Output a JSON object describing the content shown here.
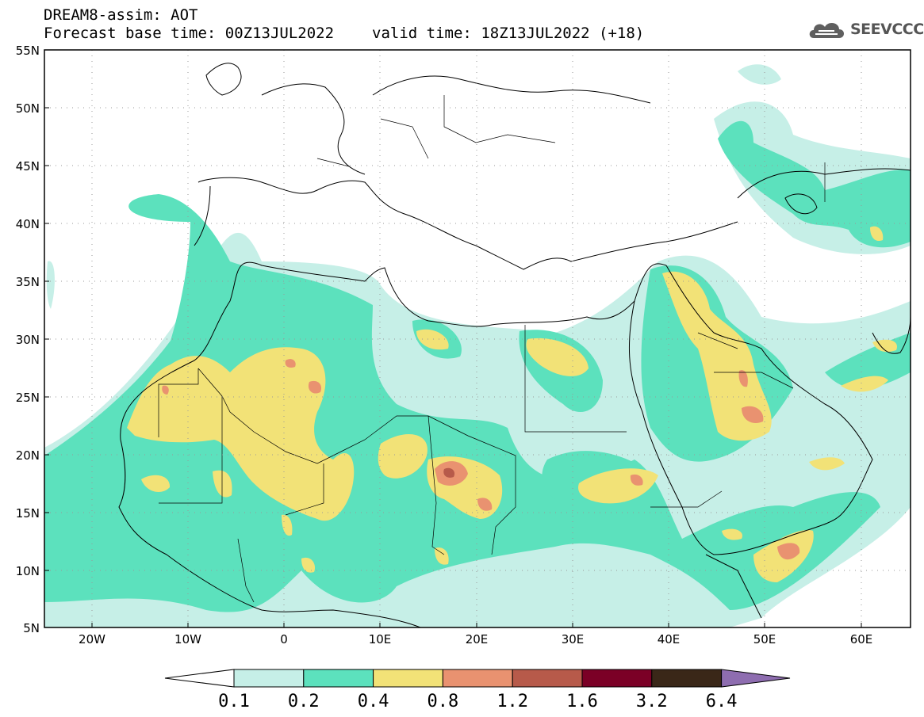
{
  "title": {
    "line1": "DREAM8-assim: AOT",
    "base_time": "Forecast base time: 00Z13JUL2022",
    "valid_time": "valid time: 18Z13JUL2022 (+18)"
  },
  "logo": {
    "text": "SEEVCCC",
    "icon": "cloud-icon"
  },
  "axes": {
    "lat_labels": [
      "55N",
      "50N",
      "45N",
      "40N",
      "35N",
      "30N",
      "25N",
      "20N",
      "15N",
      "10N",
      "5N"
    ],
    "lon_labels": [
      "20W",
      "10W",
      "0",
      "10E",
      "20E",
      "30E",
      "40E",
      "50E",
      "60E"
    ],
    "lon_range": [
      -25,
      65
    ],
    "lat_range": [
      5,
      55
    ],
    "grid": "dotted"
  },
  "legend": {
    "ticks": [
      "0.1",
      "0.2",
      "0.4",
      "0.8",
      "1.2",
      "1.6",
      "3.2",
      "6.4"
    ],
    "colors": [
      "#ffffff",
      "#c6efe7",
      "#5ce1bd",
      "#f2e277",
      "#e99270",
      "#b75a4a",
      "#7b0026",
      "#3a2718",
      "#8e6db0"
    ]
  },
  "colors": {
    "light": "#c6efe7",
    "teal": "#5ce1bd",
    "yellow": "#f2e277",
    "orange": "#e99270",
    "red": "#b75a4a"
  }
}
